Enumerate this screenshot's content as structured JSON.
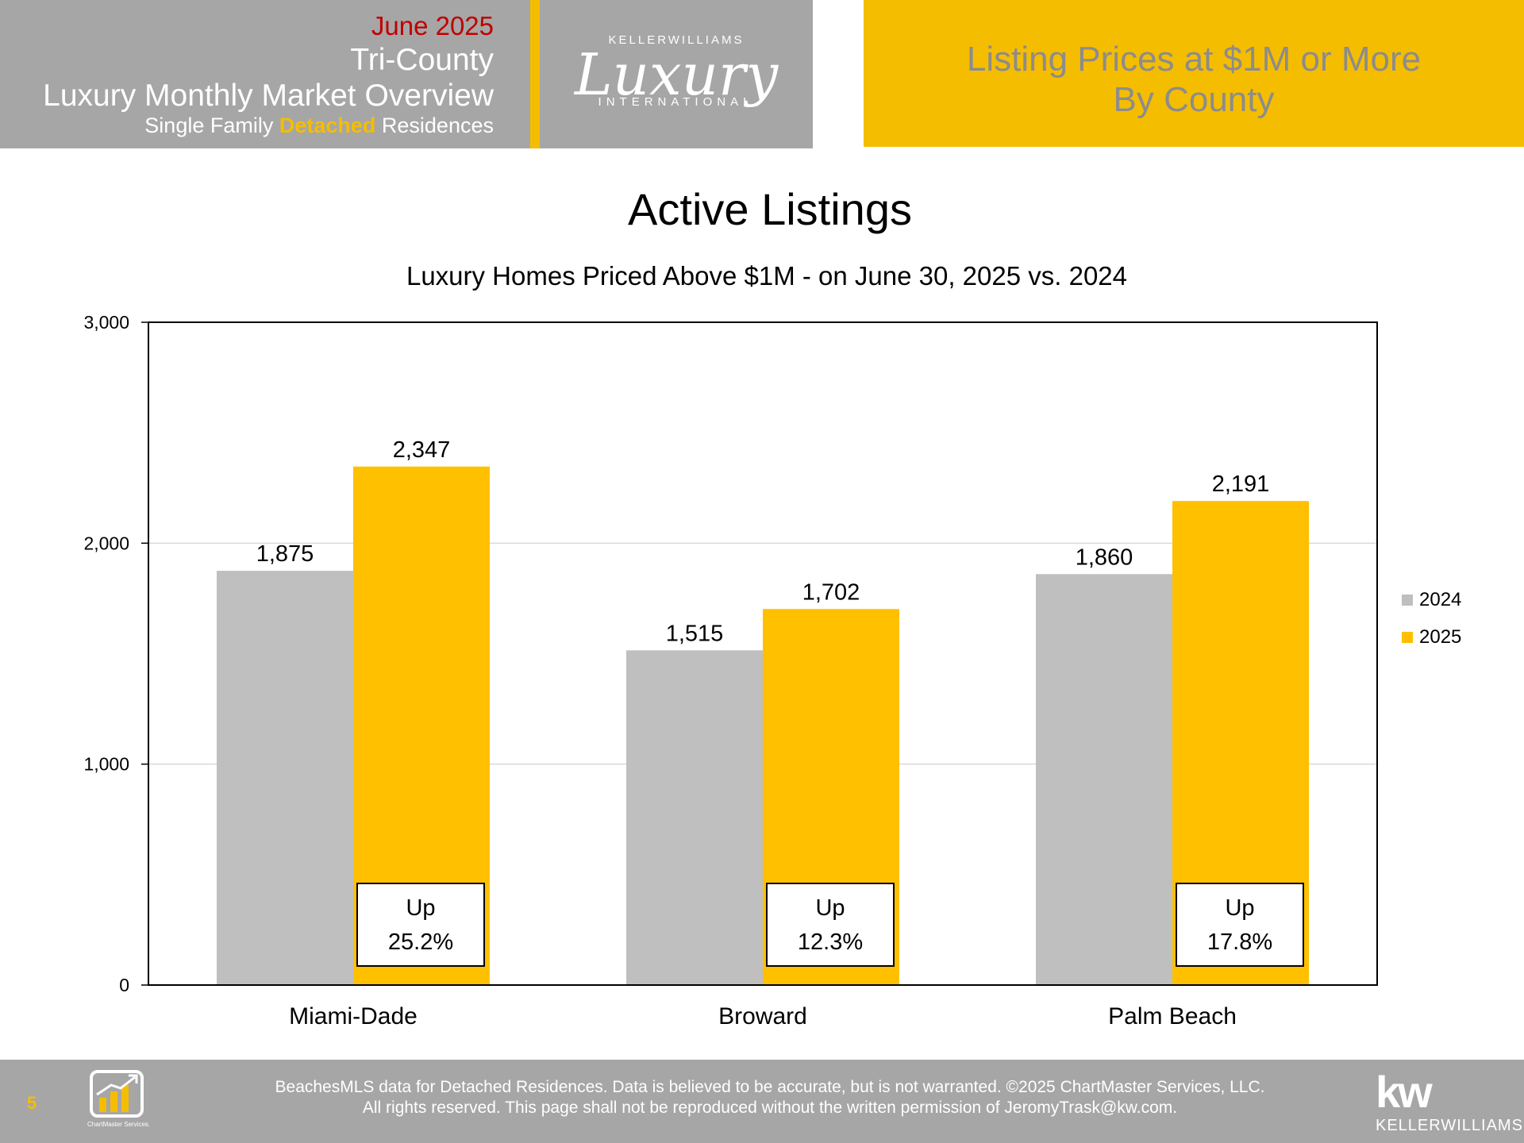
{
  "header": {
    "date": "June 2025",
    "region": "Tri-County",
    "report_title": "Luxury Monthly Market Overview",
    "subtitle_pre": "Single Family ",
    "subtitle_accent": "Detached",
    "subtitle_post": " Residences",
    "logo_brand": "KELLERWILLIAMS",
    "logo_script": "Luxury",
    "logo_sub": "INTERNATIONAL",
    "banner_line1": "Listing Prices at $1M or More",
    "banner_line2": "By County"
  },
  "colors": {
    "gold": "#f5bd00",
    "bar_2024": "#bfbfbf",
    "bar_2025": "#ffc000",
    "header_gray": "#a6a6a6",
    "date_red": "#c00000"
  },
  "chart_data": {
    "type": "bar",
    "title": "Active Listings",
    "subtitle": "Luxury Homes Priced Above $1M - on June 30,  2025 vs. 2024",
    "categories": [
      "Miami-Dade",
      "Broward",
      "Palm Beach"
    ],
    "series": [
      {
        "name": "2024",
        "values": [
          1875,
          1515,
          1860
        ],
        "labels": [
          "1,875",
          "1,515",
          "1,860"
        ]
      },
      {
        "name": "2025",
        "values": [
          2347,
          1702,
          2191
        ],
        "labels": [
          "2,347",
          "1,702",
          "2,191"
        ]
      }
    ],
    "ylim": [
      0,
      3000
    ],
    "yticks": [
      0,
      1000,
      2000,
      3000
    ],
    "ytick_labels": [
      "0",
      "1,000",
      "2,000",
      "3,000"
    ],
    "grid": true,
    "legend": "right",
    "annotations": [
      {
        "category": "Miami-Dade",
        "line1": "Up",
        "line2": "25.2%"
      },
      {
        "category": "Broward",
        "line1": "Up",
        "line2": "12.3%"
      },
      {
        "category": "Palm Beach",
        "line1": "Up",
        "line2": "17.8%"
      }
    ]
  },
  "footer": {
    "page_number": "5",
    "cm_logo_text": "ChartMaster Services, LLC",
    "line1": "BeachesMLS data for Detached Residences.  Data is believed to be accurate, but is not warranted.   ©2025  ChartMaster Services, LLC.",
    "line2": "All rights reserved. This page shall not be reproduced without the written permission of JeromyTrask@kw.com.",
    "kw_big": "kw",
    "kw_small": "KELLERWILLIAMS."
  }
}
